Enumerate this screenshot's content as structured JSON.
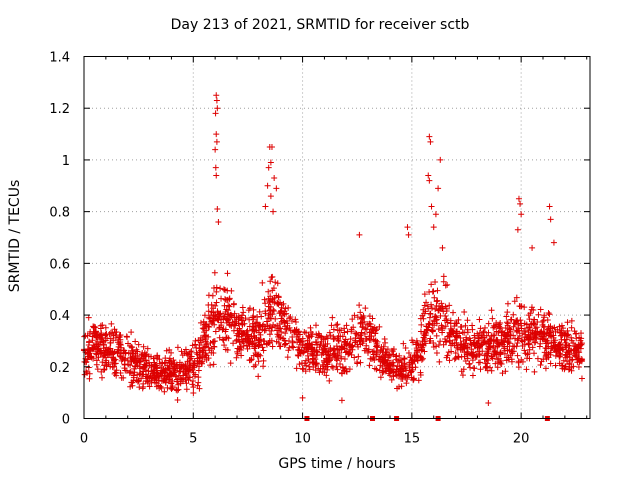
{
  "chart_data": {
    "type": "scatter",
    "title": "Day 213 of 2021, SRMTID for receiver sctb",
    "xlabel": "GPS time / hours",
    "ylabel": "SRMTID / TECUs",
    "xlim": [
      0,
      23.15
    ],
    "ylim": [
      0,
      1.4
    ],
    "x_ticks": [
      0,
      5,
      10,
      15,
      20
    ],
    "x_tick_labels": [
      "0",
      "5",
      "10",
      "15",
      "20"
    ],
    "y_ticks": [
      0,
      0.2,
      0.4,
      0.6,
      0.8,
      1.0,
      1.2,
      1.4
    ],
    "y_tick_labels": [
      "0",
      "0.2",
      "0.4",
      "0.6",
      "0.8",
      "1",
      "1.2",
      "1.4"
    ],
    "grid": true,
    "marker": "+",
    "color": "#dd0000",
    "envelope": {
      "x": [
        0,
        0.5,
        1,
        1.5,
        2,
        2.5,
        3,
        3.5,
        4,
        4.5,
        5,
        5.5,
        6,
        6.5,
        7,
        7.5,
        8,
        8.5,
        9,
        9.5,
        10,
        10.5,
        11,
        11.5,
        12,
        12.5,
        13,
        13.5,
        14,
        14.5,
        15,
        15.5,
        16,
        16.5,
        17,
        17.5,
        18,
        18.5,
        19,
        19.5,
        20,
        20.5,
        21,
        21.5,
        22,
        22.5,
        22.8
      ],
      "center": [
        0.27,
        0.28,
        0.27,
        0.26,
        0.24,
        0.21,
        0.18,
        0.17,
        0.17,
        0.18,
        0.19,
        0.3,
        0.4,
        0.38,
        0.35,
        0.32,
        0.3,
        0.42,
        0.4,
        0.33,
        0.27,
        0.25,
        0.24,
        0.26,
        0.28,
        0.32,
        0.34,
        0.26,
        0.2,
        0.19,
        0.21,
        0.3,
        0.4,
        0.36,
        0.3,
        0.28,
        0.27,
        0.28,
        0.29,
        0.31,
        0.33,
        0.33,
        0.32,
        0.3,
        0.28,
        0.26,
        0.27
      ],
      "spread": [
        0.13,
        0.14,
        0.14,
        0.14,
        0.13,
        0.12,
        0.1,
        0.09,
        0.1,
        0.11,
        0.12,
        0.15,
        0.2,
        0.17,
        0.15,
        0.13,
        0.14,
        0.22,
        0.18,
        0.14,
        0.12,
        0.12,
        0.12,
        0.13,
        0.14,
        0.14,
        0.15,
        0.12,
        0.09,
        0.09,
        0.1,
        0.14,
        0.2,
        0.17,
        0.14,
        0.13,
        0.13,
        0.13,
        0.14,
        0.15,
        0.16,
        0.16,
        0.15,
        0.14,
        0.14,
        0.12,
        0.12
      ]
    },
    "highlights": [
      {
        "x": 6.05,
        "y": 1.25
      },
      {
        "x": 6.08,
        "y": 1.23
      },
      {
        "x": 6.1,
        "y": 1.2
      },
      {
        "x": 6.02,
        "y": 1.18
      },
      {
        "x": 6.05,
        "y": 1.1
      },
      {
        "x": 6.08,
        "y": 1.07
      },
      {
        "x": 6.0,
        "y": 1.04
      },
      {
        "x": 6.03,
        "y": 0.97
      },
      {
        "x": 6.05,
        "y": 0.94
      },
      {
        "x": 6.1,
        "y": 0.81
      },
      {
        "x": 6.15,
        "y": 0.76
      },
      {
        "x": 8.5,
        "y": 1.05
      },
      {
        "x": 8.6,
        "y": 1.05
      },
      {
        "x": 8.55,
        "y": 0.99
      },
      {
        "x": 8.45,
        "y": 0.97
      },
      {
        "x": 8.7,
        "y": 0.93
      },
      {
        "x": 8.4,
        "y": 0.9
      },
      {
        "x": 8.8,
        "y": 0.89
      },
      {
        "x": 8.55,
        "y": 0.86
      },
      {
        "x": 8.3,
        "y": 0.82
      },
      {
        "x": 8.65,
        "y": 0.8
      },
      {
        "x": 15.8,
        "y": 1.09
      },
      {
        "x": 15.85,
        "y": 1.07
      },
      {
        "x": 16.3,
        "y": 1.0
      },
      {
        "x": 15.75,
        "y": 0.94
      },
      {
        "x": 15.8,
        "y": 0.92
      },
      {
        "x": 16.2,
        "y": 0.89
      },
      {
        "x": 15.9,
        "y": 0.82
      },
      {
        "x": 16.1,
        "y": 0.79
      },
      {
        "x": 16.0,
        "y": 0.74
      },
      {
        "x": 19.9,
        "y": 0.85
      },
      {
        "x": 19.95,
        "y": 0.83
      },
      {
        "x": 20.0,
        "y": 0.79
      },
      {
        "x": 19.85,
        "y": 0.73
      },
      {
        "x": 21.3,
        "y": 0.82
      },
      {
        "x": 21.35,
        "y": 0.77
      },
      {
        "x": 12.6,
        "y": 0.71
      },
      {
        "x": 14.8,
        "y": 0.74
      },
      {
        "x": 14.85,
        "y": 0.71
      },
      {
        "x": 16.4,
        "y": 0.66
      },
      {
        "x": 20.5,
        "y": 0.66
      },
      {
        "x": 21.5,
        "y": 0.68
      },
      {
        "x": 10.0,
        "y": 0.08
      },
      {
        "x": 18.5,
        "y": 0.06
      },
      {
        "x": 11.8,
        "y": 0.07
      }
    ],
    "gap_markers_x": [
      10.2,
      13.2,
      14.3,
      16.2,
      21.2
    ]
  }
}
